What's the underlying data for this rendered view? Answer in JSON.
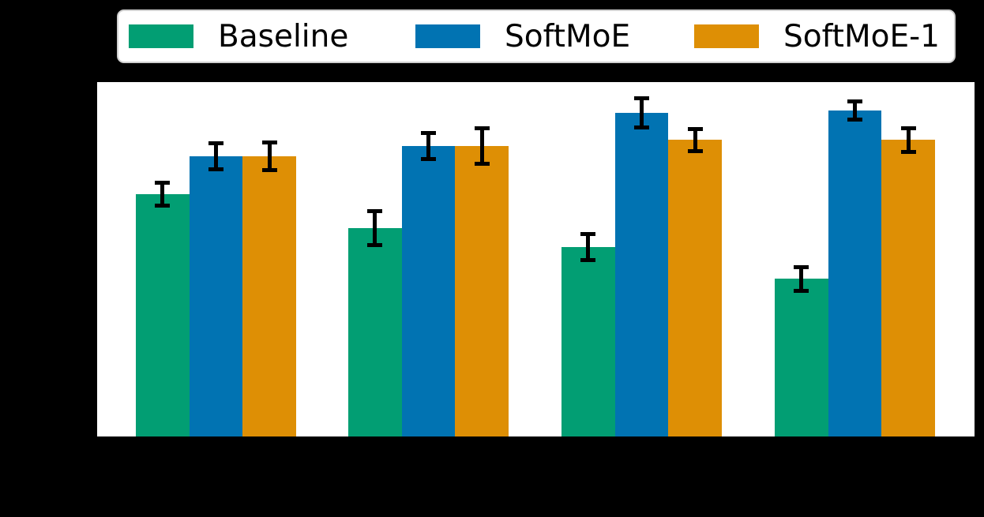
{
  "figure": {
    "background_color": "#000000",
    "plot_background_color": "#ffffff",
    "note": "axis tick labels and axis titles are rendered black-on-black and are not visible"
  },
  "legend": {
    "items": [
      {
        "label": "Baseline",
        "color": "#029e73"
      },
      {
        "label": "SoftMoE",
        "color": "#0173b2"
      },
      {
        "label": "SoftMoE-1",
        "color": "#de8f05"
      }
    ]
  },
  "chart_data": {
    "type": "bar",
    "title": "",
    "xlabel": "",
    "ylabel": "",
    "categories": [
      "",
      "",
      "",
      ""
    ],
    "tick_labels_visible": false,
    "grid": false,
    "legend_position": "top",
    "ylim": [
      0,
      1
    ],
    "units": "fraction of visible y-axis height",
    "series": [
      {
        "name": "Baseline",
        "color": "#029e73",
        "values": [
          0.684,
          0.588,
          0.535,
          0.445
        ],
        "errors": [
          0.038,
          0.053,
          0.042,
          0.039
        ]
      },
      {
        "name": "SoftMoE",
        "color": "#0173b2",
        "values": [
          0.791,
          0.82,
          0.913,
          0.92
        ],
        "errors": [
          0.042,
          0.042,
          0.046,
          0.031
        ]
      },
      {
        "name": "SoftMoE-1",
        "color": "#de8f05",
        "values": [
          0.791,
          0.82,
          0.837,
          0.837
        ],
        "errors": [
          0.045,
          0.056,
          0.037,
          0.039
        ]
      }
    ]
  }
}
